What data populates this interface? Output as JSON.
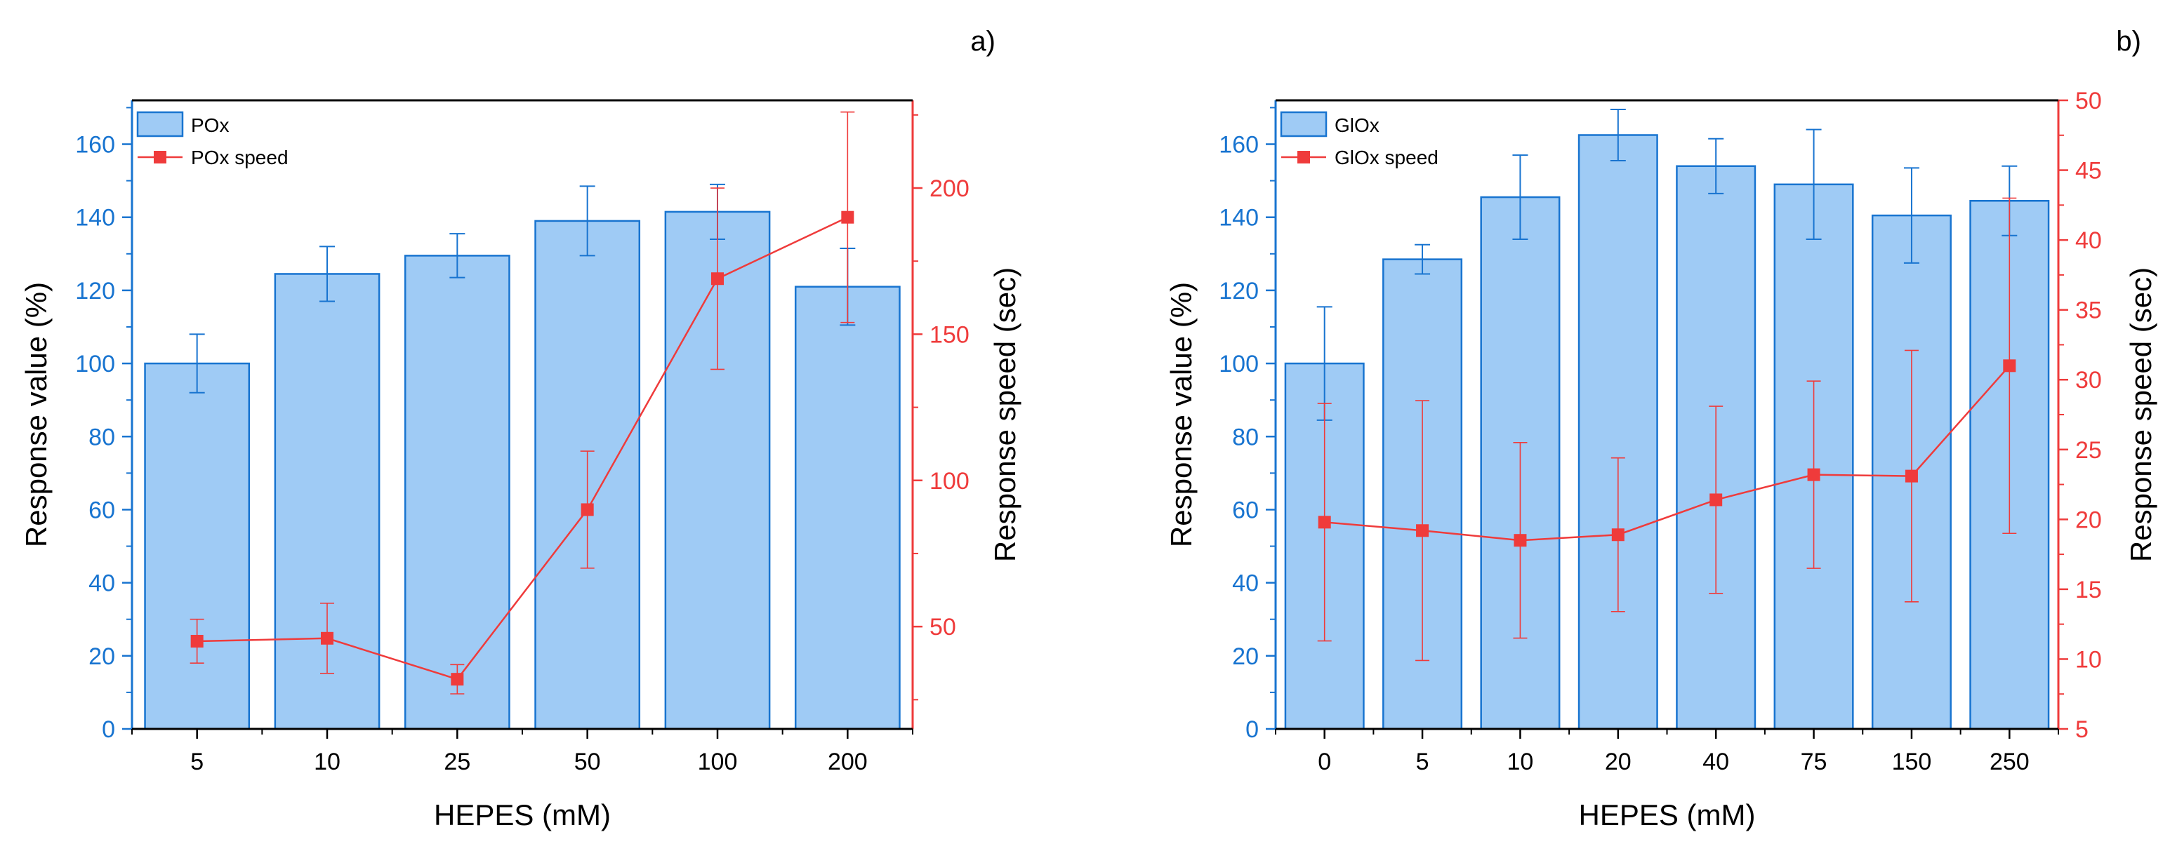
{
  "colors": {
    "bar_fill": "#9fcbf5",
    "bar_stroke": "#1874d0",
    "left_axis": "#1874d0",
    "speed": "#ef3b3b",
    "ink": "#000000"
  },
  "chart_data": [
    {
      "type": "bar",
      "panel_label": "a)",
      "title": "",
      "xlabel": "HEPES (mM)",
      "ylabel": "Response value (%)",
      "y2label": "Response speed (sec)",
      "ylim": [
        0,
        172
      ],
      "yticks": [
        0,
        20,
        40,
        60,
        80,
        100,
        120,
        140,
        160
      ],
      "y2lim": [
        15,
        230
      ],
      "y2ticks": [
        50,
        100,
        150,
        200
      ],
      "categories": [
        "5",
        "10",
        "25",
        "50",
        "100",
        "200"
      ],
      "series": [
        {
          "name": "POx",
          "type": "bar",
          "axis": "left",
          "values": [
            100,
            124.5,
            129.5,
            139,
            141.5,
            121
          ],
          "errors": [
            8,
            7.5,
            6,
            9.5,
            7.5,
            10.5
          ]
        },
        {
          "name": "POx speed",
          "type": "line",
          "axis": "right",
          "values": [
            45,
            46,
            32,
            90,
            169,
            190
          ],
          "errors": [
            7.5,
            12,
            5,
            20,
            31,
            36
          ]
        }
      ],
      "legend": "top-left"
    },
    {
      "type": "bar",
      "panel_label": "b)",
      "title": "",
      "xlabel": "HEPES (mM)",
      "ylabel": "Response value (%)",
      "y2label": "Response speed (sec)",
      "ylim": [
        0,
        172
      ],
      "yticks": [
        0,
        20,
        40,
        60,
        80,
        100,
        120,
        140,
        160
      ],
      "y2lim": [
        5,
        50
      ],
      "y2ticks": [
        5,
        10,
        15,
        20,
        25,
        30,
        35,
        40,
        45,
        50
      ],
      "categories": [
        "0",
        "5",
        "10",
        "20",
        "40",
        "75",
        "150",
        "250"
      ],
      "series": [
        {
          "name": "GlOx",
          "type": "bar",
          "axis": "left",
          "values": [
            100,
            128.5,
            145.5,
            162.5,
            154,
            149,
            140.5,
            144.5
          ],
          "errors": [
            15.5,
            4,
            11.5,
            7,
            7.5,
            15,
            13,
            9.5
          ]
        },
        {
          "name": "GlOx speed",
          "type": "line",
          "axis": "right",
          "values": [
            19.8,
            19.2,
            18.5,
            18.9,
            21.4,
            23.2,
            23.1,
            31
          ],
          "errors": [
            8.5,
            9.3,
            7,
            5.5,
            6.7,
            6.7,
            9,
            12
          ]
        }
      ],
      "legend": "top-left"
    }
  ]
}
